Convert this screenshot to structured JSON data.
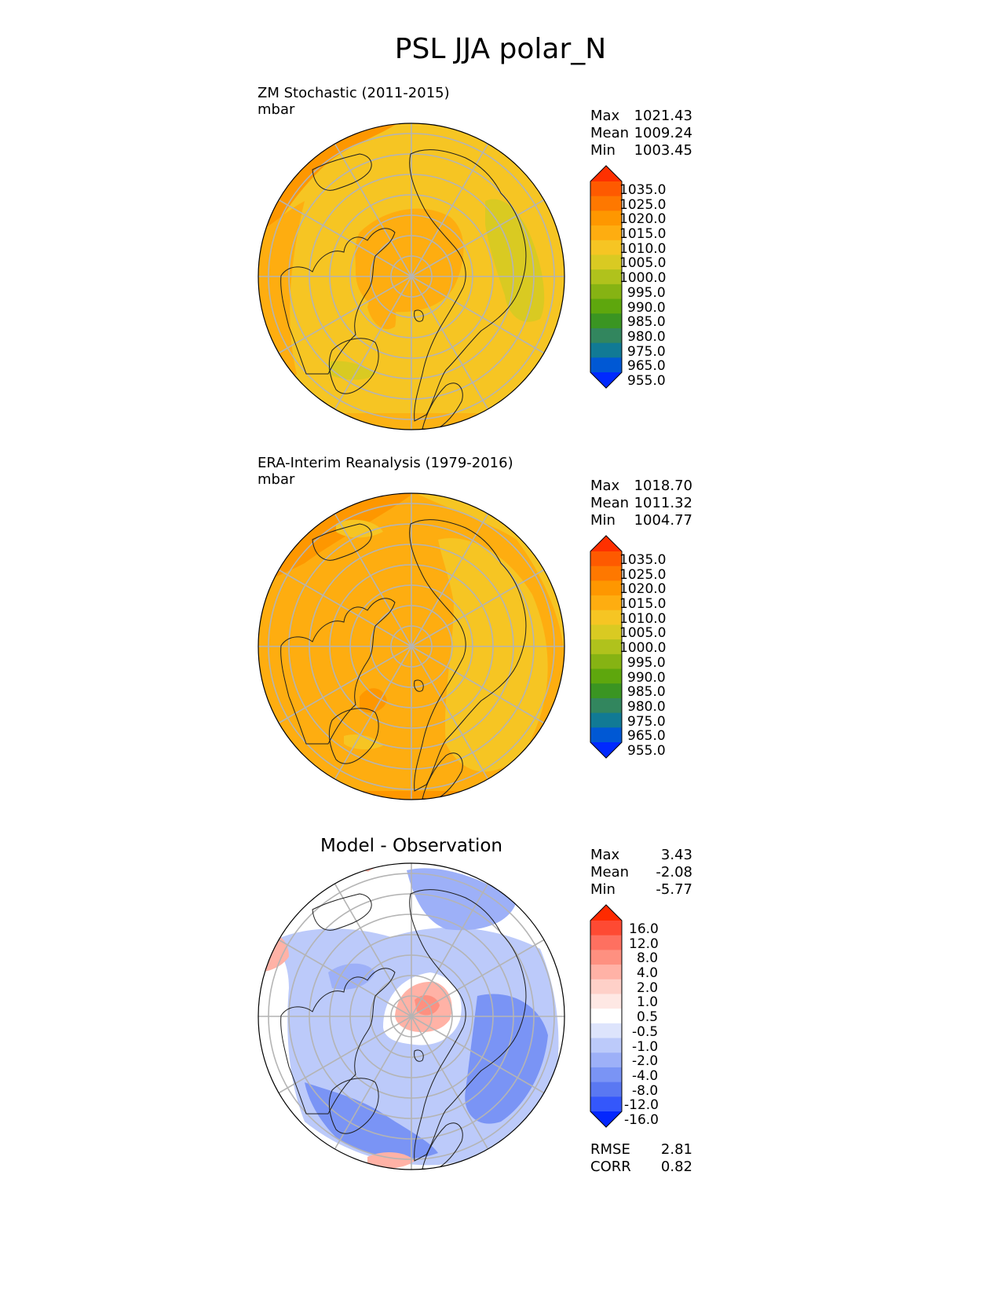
{
  "title": "PSL JJA polar_N",
  "panels": [
    {
      "id": "test",
      "name": "ZM Stochastic (2011-2015)",
      "units": "mbar",
      "stats": [
        {
          "label": "Max",
          "value": "1021.43"
        },
        {
          "label": "Mean",
          "value": "1009.24"
        },
        {
          "label": "Min",
          "value": "1003.45"
        }
      ],
      "cbar_labels": [
        "1035.0",
        "1025.0",
        "1020.0",
        "1015.0",
        "1010.0",
        "1005.0",
        "1000.0",
        "995.0",
        "990.0",
        "985.0",
        "980.0",
        "975.0",
        "965.0",
        "955.0"
      ],
      "cbar_colors": [
        "#fe3000",
        "#fe5a00",
        "#fe7800",
        "#fe9700",
        "#fead10",
        "#f6c523",
        "#d9ca22",
        "#b0c21c",
        "#86b313",
        "#5ea70d",
        "#3a9522",
        "#32865e",
        "#117a95",
        "#0058d4",
        "#0029fe"
      ]
    },
    {
      "id": "reference",
      "name": "ERA-Interim Reanalysis (1979-2016)",
      "units": "mbar",
      "stats": [
        {
          "label": "Max",
          "value": "1018.70"
        },
        {
          "label": "Mean",
          "value": "1011.32"
        },
        {
          "label": "Min",
          "value": "1004.77"
        }
      ],
      "cbar_labels": [
        "1035.0",
        "1025.0",
        "1020.0",
        "1015.0",
        "1010.0",
        "1005.0",
        "1000.0",
        "995.0",
        "990.0",
        "985.0",
        "980.0",
        "975.0",
        "965.0",
        "955.0"
      ],
      "cbar_colors": [
        "#fe3000",
        "#fe5a00",
        "#fe7800",
        "#fe9700",
        "#fead10",
        "#f6c523",
        "#d9ca22",
        "#b0c21c",
        "#86b313",
        "#5ea70d",
        "#3a9522",
        "#32865e",
        "#117a95",
        "#0058d4",
        "#0029fe"
      ]
    },
    {
      "id": "diff",
      "name": "Model - Observation",
      "units": "",
      "stats": [
        {
          "label": "Max",
          "value": "3.43"
        },
        {
          "label": "Mean",
          "value": "-2.08"
        },
        {
          "label": "Min",
          "value": "-5.77"
        }
      ],
      "cbar_labels": [
        "16.0",
        "12.0",
        "8.0",
        "4.0",
        "2.0",
        "1.0",
        "0.5",
        "-0.5",
        "-1.0",
        "-2.0",
        "-4.0",
        "-8.0",
        "-12.0",
        "-16.0"
      ],
      "cbar_colors": [
        "#fe2a00",
        "#fe4a33",
        "#fe7060",
        "#fe9080",
        "#ffb2a6",
        "#fed0c8",
        "#fee8e4",
        "#ffffff",
        "#dde4fc",
        "#bccafa",
        "#9db0f8",
        "#7a94f5",
        "#5a78f2",
        "#3457fb",
        "#0427fd"
      ],
      "metrics": [
        {
          "label": "RMSE",
          "value": "2.81"
        },
        {
          "label": "CORR",
          "value": "0.82"
        }
      ]
    }
  ],
  "map_colors": {
    "test": {
      "base": "#f6c523",
      "orange": "#fead10",
      "dark": "#fe9700",
      "green": "#d9ca22"
    },
    "reference": {
      "base": "#fead10",
      "light": "#f6c523",
      "dark": "#fe9700"
    },
    "diff": {
      "base": "#ffffff",
      "blue1": "#bccafa",
      "blue2": "#9db0f8",
      "blue3": "#7a94f5",
      "red1": "#ffb2a6",
      "red2": "#fe9080"
    },
    "grid": "#b4b4b4",
    "coast": "#1e1e1e"
  }
}
